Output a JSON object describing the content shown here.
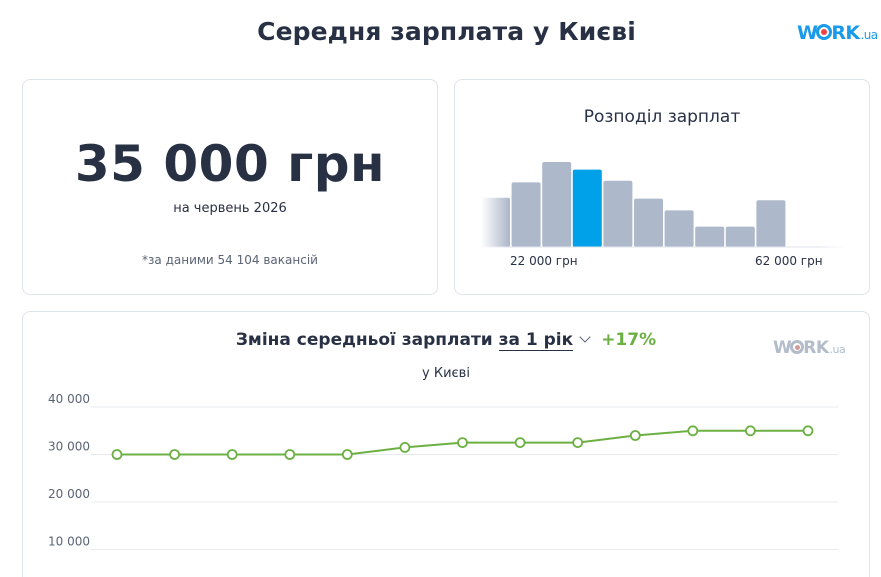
{
  "page": {
    "title": "Середня зарплата у Києві",
    "logo_text_pre": "W",
    "logo_text_post": "RK",
    "logo_suffix": ".ua"
  },
  "salary_card": {
    "value": "35 000 грн",
    "date": "на червень 2026",
    "note": "*за даними 54 104 вакансій"
  },
  "distribution_card": {
    "title": "Розподіл зарплат",
    "min_label": "22 000 грн",
    "max_label": "62 000 грн",
    "bars": [
      0.58,
      0.76,
      1.0,
      0.91,
      0.78,
      0.57,
      0.43,
      0.24,
      0.24,
      0.55
    ],
    "highlight_index": 3,
    "colors": {
      "bar": "#aeb8cb",
      "highlight": "#00a1e8"
    }
  },
  "trend_card": {
    "title": "Зміна середньої зарплати",
    "period": "за 1 рік",
    "growth": "+17%",
    "subtitle": "у Києві",
    "colors": {
      "line": "#6cb043",
      "grid": "#e6e9ee"
    }
  },
  "chart_data": {
    "type": "line",
    "title": "Зміна середньої зарплати за 1 рік",
    "subtitle": "у Києві",
    "ylim": [
      0,
      40000
    ],
    "yticks": [
      10000,
      20000,
      30000,
      40000
    ],
    "ytick_labels": [
      "10 000",
      "20 000",
      "30 000",
      "40 000"
    ],
    "grid": true,
    "series": [
      {
        "values": [
          30000,
          30000,
          30000,
          30000,
          30000,
          31500,
          32500,
          32500,
          32500,
          34000,
          35000,
          35000,
          35000
        ]
      }
    ]
  }
}
